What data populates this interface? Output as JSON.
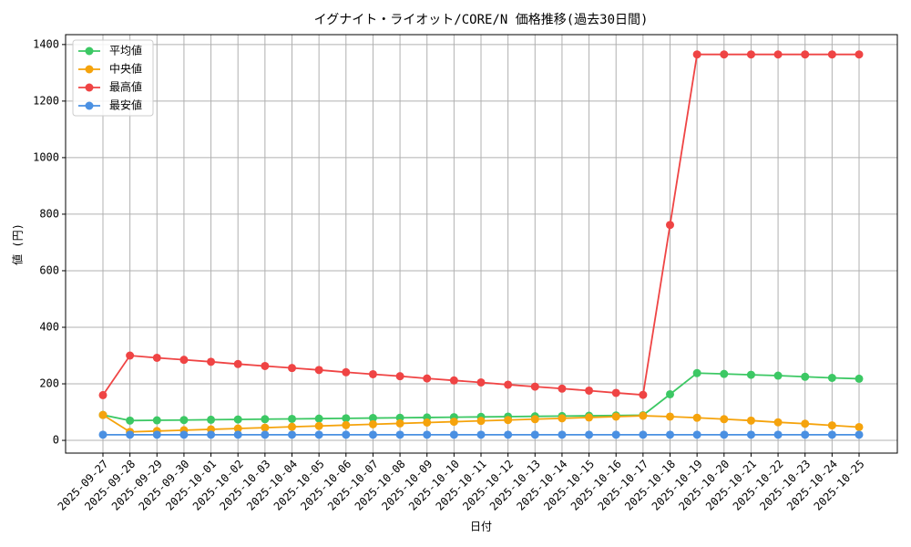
{
  "chart_data": {
    "type": "line",
    "title": "イグナイト・ライオット/CORE/N 価格推移(過去30日間)",
    "xlabel": "日付",
    "ylabel": "値 (円)",
    "categories": [
      "2025-09-27",
      "2025-09-28",
      "2025-09-29",
      "2025-09-30",
      "2025-10-01",
      "2025-10-02",
      "2025-10-03",
      "2025-10-04",
      "2025-10-05",
      "2025-10-06",
      "2025-10-07",
      "2025-10-08",
      "2025-10-09",
      "2025-10-10",
      "2025-10-11",
      "2025-10-12",
      "2025-10-13",
      "2025-10-14",
      "2025-10-15",
      "2025-10-16",
      "2025-10-17",
      "2025-10-18",
      "2025-10-19",
      "2025-10-20",
      "2025-10-21",
      "2025-10-22",
      "2025-10-23",
      "2025-10-24",
      "2025-10-25"
    ],
    "series": [
      {
        "name": "平均値",
        "color": "#3cc864",
        "values": [
          90,
          70,
          71,
          72,
          73,
          74,
          75,
          76,
          77,
          78,
          79,
          80,
          81,
          82,
          83,
          84,
          85,
          86,
          87,
          88,
          89,
          163,
          238,
          235,
          232,
          229,
          225,
          221,
          218
        ]
      },
      {
        "name": "中央値",
        "color": "#f5a30c",
        "values": [
          90,
          30,
          33,
          36,
          39,
          42,
          45,
          48,
          51,
          54,
          57,
          60,
          63,
          66,
          69,
          72,
          75,
          78,
          81,
          84,
          87,
          84,
          80,
          75,
          70,
          64,
          59,
          53,
          47
        ]
      },
      {
        "name": "最高値",
        "color": "#ef4444",
        "values": [
          160,
          300,
          292,
          285,
          278,
          270,
          263,
          256,
          249,
          241,
          234,
          227,
          219,
          212,
          205,
          197,
          190,
          183,
          176,
          168,
          161,
          762,
          1365,
          1365,
          1365,
          1365,
          1365,
          1365,
          1365
        ]
      },
      {
        "name": "最安値",
        "color": "#4a90e2",
        "values": [
          20,
          20,
          20,
          20,
          20,
          20,
          20,
          20,
          20,
          20,
          20,
          20,
          20,
          20,
          20,
          20,
          20,
          20,
          20,
          20,
          20,
          20,
          20,
          20,
          20,
          20,
          20,
          20,
          20
        ]
      }
    ],
    "ylim": [
      -45,
      1435
    ],
    "yticks": [
      0,
      200,
      400,
      600,
      800,
      1000,
      1200,
      1400
    ],
    "grid": true,
    "legend": "upper-left"
  }
}
